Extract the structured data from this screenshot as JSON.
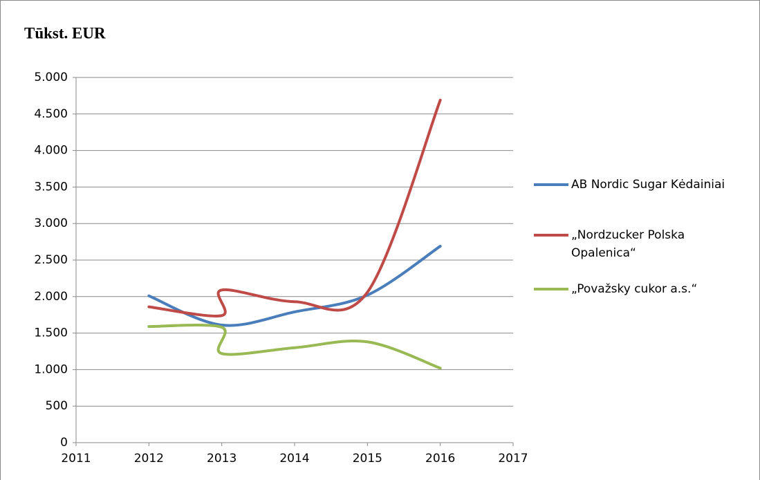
{
  "chart_data": {
    "type": "line",
    "title": "Tūkst. EUR",
    "xlim": [
      2011,
      2017
    ],
    "xticks": [
      2011,
      2012,
      2013,
      2014,
      2015,
      2016,
      2017
    ],
    "ylim": [
      0,
      5000
    ],
    "yticks": [
      0,
      500,
      {
        "value": 1000,
        "label": "1.000"
      },
      {
        "value": 1500,
        "label": "1.500"
      },
      {
        "value": 2000,
        "label": "2.000"
      },
      {
        "value": 2500,
        "label": "2.500"
      },
      {
        "value": 3000,
        "label": "3.000"
      },
      {
        "value": 3500,
        "label": "3.500"
      },
      {
        "value": 4000,
        "label": "4.000"
      },
      {
        "value": 4500,
        "label": "4.500"
      },
      {
        "value": 5000,
        "label": "5.000"
      }
    ],
    "grid": true,
    "legend": "right",
    "series": [
      {
        "name": "AB Nordic Sugar Kėdainiai",
        "color": "#4a7ebb",
        "x": [
          2012,
          2013,
          2014,
          2015,
          2016
        ],
        "values": [
          2010,
          1610,
          1790,
          2020,
          2690
        ]
      },
      {
        "name": "„Nordzucker Polska Opalenica“",
        "color": "#be4b48",
        "x": [
          2012,
          2013,
          2013,
          2014,
          2015,
          2016
        ],
        "values": [
          1860,
          1740,
          2090,
          1930,
          2060,
          4690
        ]
      },
      {
        "name": "„Považsky cukor a.s.“",
        "color": "#98b954",
        "x": [
          2012,
          2013,
          2013,
          2014,
          2015,
          2016
        ],
        "values": [
          1590,
          1580,
          1220,
          1300,
          1380,
          1020
        ]
      }
    ]
  }
}
